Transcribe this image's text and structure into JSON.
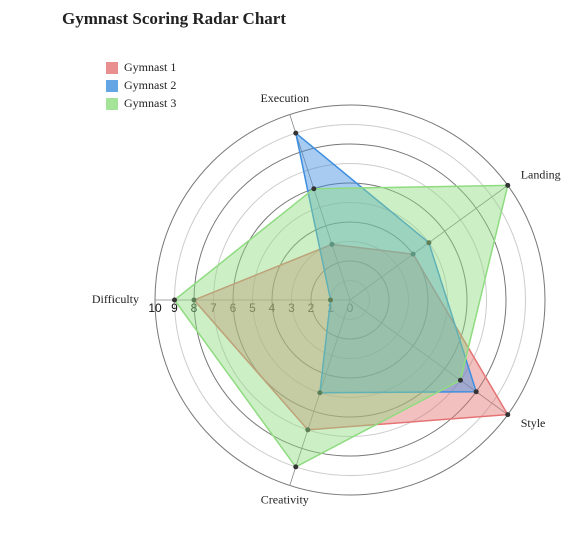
{
  "chart_data": {
    "type": "radar",
    "title": "Gymnast Scoring Radar Chart",
    "categories": [
      "Execution",
      "Landing",
      "Style",
      "Creativity",
      "Difficulty"
    ],
    "series": [
      {
        "name": "Gymnast 1",
        "color": "#e57373",
        "values": [
          3,
          4,
          10,
          7,
          8
        ]
      },
      {
        "name": "Gymnast 2",
        "color": "#3d8ee0",
        "values": [
          9,
          5,
          8,
          5,
          1
        ]
      },
      {
        "name": "Gymnast 3",
        "color": "#8fdc80",
        "values": [
          6,
          10,
          7,
          9,
          9
        ]
      }
    ],
    "rlim": [
      0,
      10
    ],
    "rticks": [
      0,
      1,
      2,
      3,
      4,
      5,
      6,
      7,
      8,
      9,
      10
    ],
    "grid": true
  }
}
